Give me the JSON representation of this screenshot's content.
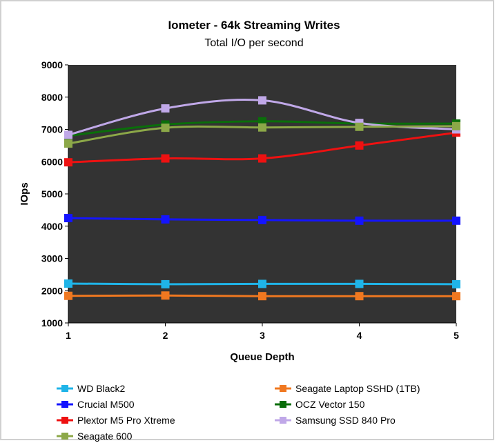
{
  "chart_data": {
    "type": "line",
    "title": "Iometer - 64k Streaming Writes",
    "subtitle": "Total I/O per second",
    "xlabel": "Queue Depth",
    "ylabel": "IOps",
    "x": [
      1,
      2,
      3,
      4,
      5
    ],
    "x_tick_labels": [
      "1",
      "2",
      "3",
      "4",
      "5"
    ],
    "ylim": [
      1000,
      9000
    ],
    "y_ticks": [
      1000,
      2000,
      3000,
      4000,
      5000,
      6000,
      7000,
      8000,
      9000
    ],
    "y_tick_labels": [
      "1000",
      "2000",
      "3000",
      "4000",
      "5000",
      "6000",
      "7000",
      "8000",
      "9000"
    ],
    "plot_background": "#333333",
    "grid": false,
    "legend_position": "bottom",
    "series": [
      {
        "name": "WD Black2",
        "color": "#1fb4e8",
        "values": [
          2220,
          2200,
          2210,
          2210,
          2200
        ]
      },
      {
        "name": "Seagate Laptop SSHD (1TB)",
        "color": "#f07820",
        "values": [
          1840,
          1850,
          1830,
          1830,
          1830
        ]
      },
      {
        "name": "Crucial M500",
        "color": "#1414ff",
        "values": [
          4250,
          4210,
          4190,
          4170,
          4170
        ]
      },
      {
        "name": "OCZ Vector 150",
        "color": "#0a6e0a",
        "values": [
          6800,
          7150,
          7250,
          7180,
          7180
        ]
      },
      {
        "name": "Plextor M5 Pro Xtreme",
        "color": "#ee1111",
        "values": [
          5980,
          6100,
          6100,
          6500,
          6900
        ]
      },
      {
        "name": "Samsung SSD 840 Pro",
        "color": "#c0a8e8",
        "values": [
          6830,
          7650,
          7900,
          7200,
          7000
        ]
      },
      {
        "name": "Seagate 600",
        "color": "#8ca848",
        "values": [
          6560,
          7050,
          7060,
          7080,
          7100
        ]
      }
    ]
  }
}
